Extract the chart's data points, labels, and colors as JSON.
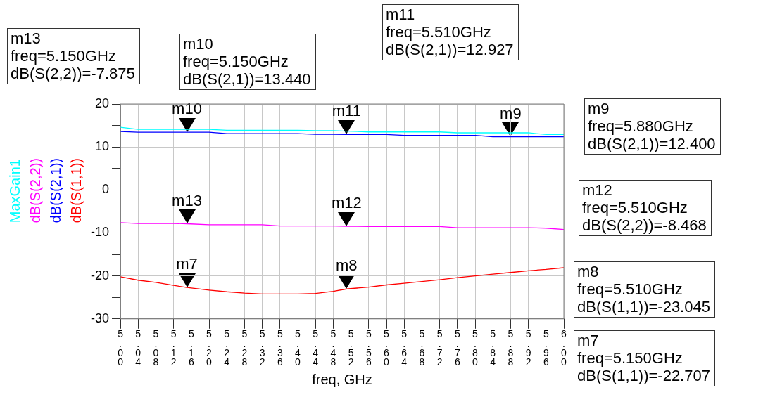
{
  "chart_data": {
    "type": "line",
    "xlabel": "freq, GHz",
    "x": [
      5.0,
      5.04,
      5.08,
      5.12,
      5.15,
      5.2,
      5.24,
      5.28,
      5.32,
      5.36,
      5.4,
      5.44,
      5.48,
      5.51,
      5.56,
      5.6,
      5.64,
      5.68,
      5.72,
      5.76,
      5.8,
      5.84,
      5.88,
      5.92,
      5.96,
      6.0
    ],
    "series": [
      {
        "name": "MaxGain1",
        "color": "#00ffff",
        "values": [
          14.6,
          14.1,
          14.1,
          14.1,
          14.1,
          14.1,
          13.9,
          13.9,
          13.9,
          13.9,
          13.9,
          13.8,
          13.8,
          13.7,
          13.5,
          13.5,
          13.5,
          13.5,
          13.5,
          13.3,
          13.3,
          13.3,
          13.3,
          13.3,
          12.9,
          12.9
        ]
      },
      {
        "name": "dB(S(2,2))",
        "color": "#ff00ff",
        "values": [
          -7.6,
          -7.8,
          -7.8,
          -7.8,
          -7.875,
          -8.1,
          -8.1,
          -8.1,
          -8.1,
          -8.4,
          -8.4,
          -8.4,
          -8.4,
          -8.468,
          -8.5,
          -8.5,
          -8.5,
          -8.5,
          -8.5,
          -8.8,
          -8.8,
          -8.8,
          -8.8,
          -8.8,
          -8.9,
          -9.2
        ]
      },
      {
        "name": "dB(S(2,1))",
        "color": "#0000ff",
        "values": [
          13.6,
          13.45,
          13.44,
          13.44,
          13.44,
          13.44,
          13.1,
          13.1,
          13.1,
          13.1,
          13.1,
          12.95,
          12.95,
          12.927,
          12.9,
          12.9,
          12.7,
          12.7,
          12.7,
          12.7,
          12.7,
          12.4,
          12.4,
          12.4,
          12.4,
          12.4
        ]
      },
      {
        "name": "dB(S(1,1))",
        "color": "#ff0000",
        "values": [
          -20.2,
          -21.0,
          -21.5,
          -22.2,
          -22.707,
          -23.3,
          -23.7,
          -24.0,
          -24.2,
          -24.2,
          -24.2,
          -24.1,
          -23.6,
          -23.045,
          -22.6,
          -22.1,
          -21.7,
          -21.3,
          -20.9,
          -20.4,
          -20.0,
          -19.6,
          -19.2,
          -18.8,
          -18.5,
          -18.1
        ]
      }
    ],
    "xlim": [
      5.0,
      6.0
    ],
    "xticks": [
      {
        "value": 5.0,
        "label": "5.00"
      },
      {
        "value": 5.04,
        "label": "5.04"
      },
      {
        "value": 5.08,
        "label": "5.08"
      },
      {
        "value": 5.12,
        "label": "5.12"
      },
      {
        "value": 5.16,
        "label": "5.16"
      },
      {
        "value": 5.2,
        "label": "5.20"
      },
      {
        "value": 5.24,
        "label": "5.24"
      },
      {
        "value": 5.28,
        "label": "5.28"
      },
      {
        "value": 5.32,
        "label": "5.32"
      },
      {
        "value": 5.36,
        "label": "5.36"
      },
      {
        "value": 5.4,
        "label": "5.40"
      },
      {
        "value": 5.44,
        "label": "5.44"
      },
      {
        "value": 5.48,
        "label": "5.48"
      },
      {
        "value": 5.52,
        "label": "5.52"
      },
      {
        "value": 5.56,
        "label": "5.56"
      },
      {
        "value": 5.6,
        "label": "5.60"
      },
      {
        "value": 5.64,
        "label": "5.64"
      },
      {
        "value": 5.68,
        "label": "5.68"
      },
      {
        "value": 5.72,
        "label": "5.72"
      },
      {
        "value": 5.76,
        "label": "5.76"
      },
      {
        "value": 5.8,
        "label": "5.80"
      },
      {
        "value": 5.84,
        "label": "5.84"
      },
      {
        "value": 5.88,
        "label": "5.88"
      },
      {
        "value": 5.92,
        "label": "5.92"
      },
      {
        "value": 5.96,
        "label": "5.96"
      },
      {
        "value": 6.0,
        "label": "6.00"
      }
    ],
    "ylim": [
      -30,
      20
    ],
    "yticks": [
      -30,
      {
        "value": -25,
        "label": null
      },
      -20,
      {
        "value": -15,
        "label": null
      },
      -10,
      {
        "value": -5,
        "label": null
      },
      0,
      {
        "value": 5,
        "label": null
      },
      10,
      {
        "value": 15,
        "label": null
      },
      20
    ],
    "grid": true,
    "legend": "left",
    "marker": "none",
    "line_style": "solid",
    "annotations": [
      {
        "text": "m7",
        "x": 5.15,
        "y": -22.707
      },
      {
        "text": "m8",
        "x": 5.51,
        "y": -23.045
      },
      {
        "text": "m9",
        "x": 5.88,
        "y": 12.4
      },
      {
        "text": "m10",
        "x": 5.15,
        "y": 13.44
      },
      {
        "text": "m11",
        "x": 5.51,
        "y": 12.927
      },
      {
        "text": "m12",
        "x": 5.51,
        "y": -8.468
      },
      {
        "text": "m13",
        "x": 5.15,
        "y": -7.875
      },
      "m7\nfreq=5.150GHz\ndB(S(1,1))=-22.707",
      "m8\nfreq=5.510GHz\ndB(S(1,1))=-23.045",
      "m9\nfreq=5.880GHz\ndB(S(2,1))=12.400",
      "m10\nfreq=5.150GHz\ndB(S(2,1))=13.440",
      "m11\nfreq=5.510GHz\ndB(S(2,1))=12.927",
      "m12\nfreq=5.510GHz\ndB(S(2,2))=-8.468",
      "m13\nfreq=5.150GHz\ndB(S(2,2))=-7.875"
    ]
  }
}
